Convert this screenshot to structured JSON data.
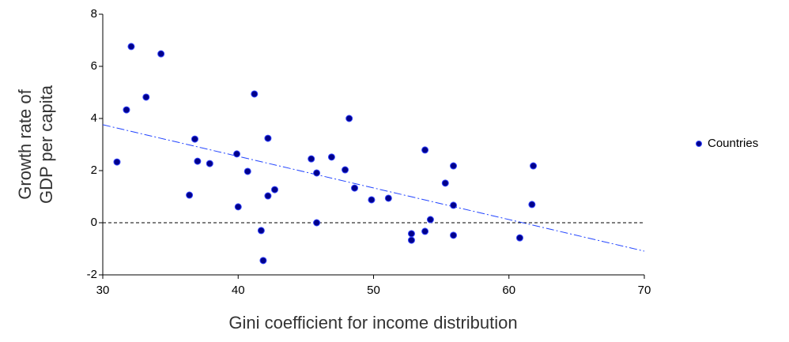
{
  "chart_data": {
    "type": "scatter",
    "xlabel": "Gini coefficient for income distribution",
    "ylabel": [
      "Growth rate of",
      "GDP per capita"
    ],
    "xlim": [
      30,
      70
    ],
    "ylim": [
      -2,
      8
    ],
    "xticks": [
      30,
      40,
      50,
      60,
      70
    ],
    "yticks": [
      -2,
      0,
      2,
      4,
      6,
      8
    ],
    "legend": "right",
    "reference_y": 0,
    "trend_line": {
      "x": [
        30,
        70
      ],
      "y": [
        3.76,
        -1.09
      ],
      "color": "#2244ff"
    },
    "series": [
      {
        "name": "Countries",
        "color": "#00008b",
        "x": [
          31.05,
          31.75,
          32.1,
          33.2,
          34.3,
          36.4,
          36.8,
          37.0,
          37.9,
          39.9,
          40.0,
          40.7,
          41.2,
          41.7,
          41.85,
          42.2,
          42.2,
          42.7,
          45.4,
          45.8,
          45.8,
          46.9,
          47.9,
          48.2,
          48.6,
          49.85,
          51.1,
          52.8,
          52.8,
          53.8,
          53.8,
          54.2,
          55.3,
          55.9,
          55.9,
          55.9,
          60.8,
          61.7,
          61.8
        ],
        "values": [
          2.33,
          4.33,
          6.76,
          4.82,
          6.48,
          1.06,
          3.21,
          2.36,
          2.27,
          2.64,
          0.61,
          1.97,
          4.94,
          -0.3,
          -1.45,
          1.03,
          3.24,
          1.27,
          2.45,
          1.91,
          0,
          2.52,
          2.03,
          4.0,
          1.33,
          0.88,
          0.94,
          -0.42,
          -0.67,
          2.79,
          -0.33,
          0.12,
          1.52,
          2.18,
          0.67,
          -0.48,
          -0.58,
          0.7,
          2.18
        ]
      }
    ]
  }
}
